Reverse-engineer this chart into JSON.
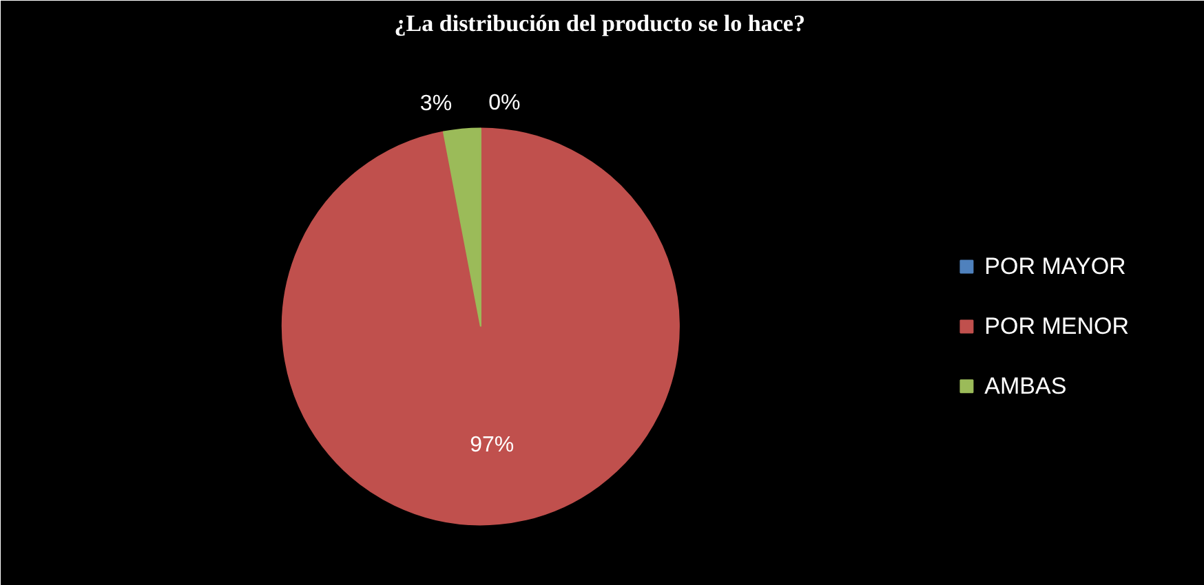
{
  "chart_data": {
    "type": "pie",
    "title": "¿La distribución  del producto se lo hace?",
    "categories": [
      "POR MAYOR",
      "POR MENOR",
      "AMBAS"
    ],
    "values": [
      0,
      97,
      3
    ],
    "colors": [
      "#4f81bd",
      "#c0504d",
      "#9bbb59"
    ],
    "value_labels": [
      "0%",
      "97%",
      "3%"
    ],
    "legend": "right"
  }
}
